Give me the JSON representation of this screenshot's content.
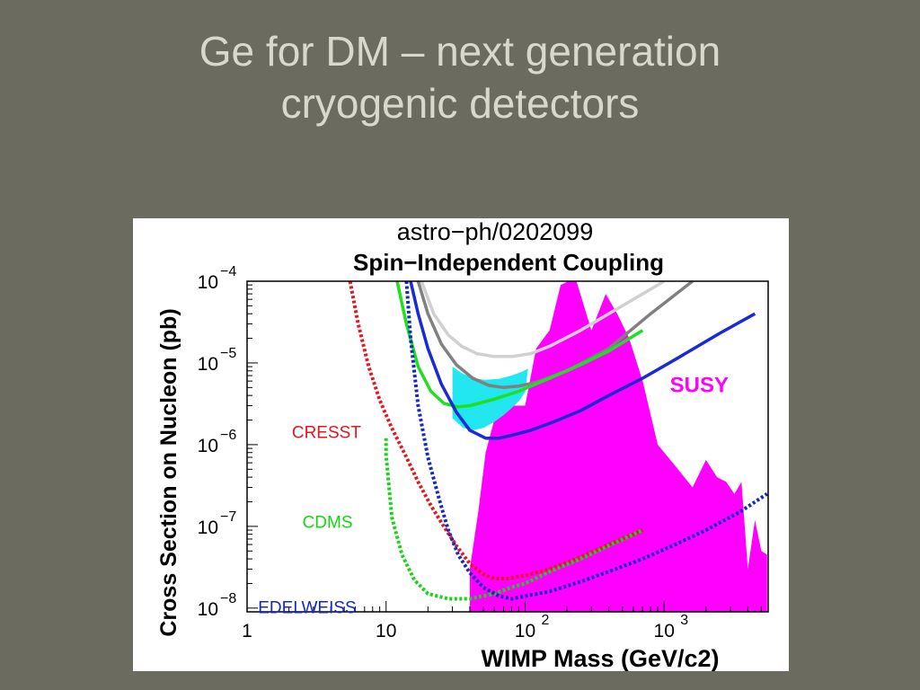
{
  "slide": {
    "title_line1": "Ge for DM – next generation",
    "title_line2": "cryogenic detectors"
  },
  "chart_data": {
    "type": "line",
    "title": "Spin−Independent Coupling",
    "subtitle": "astro−ph/0202099",
    "xlabel": "WIMP Mass (GeV/c2)",
    "ylabel": "Cross Section on Nucleon (pb)",
    "x_scale": "log",
    "y_scale": "log",
    "xlim": [
      1,
      5600
    ],
    "ylim": [
      9e-09,
      0.0001
    ],
    "grid": false,
    "legend": "none",
    "x_ticks": [
      {
        "value": 1,
        "label": "1",
        "sup": ""
      },
      {
        "value": 10,
        "label": "10",
        "sup": ""
      },
      {
        "value": 100,
        "label": "10",
        "sup": "2"
      },
      {
        "value": 1000,
        "label": "10",
        "sup": "3"
      }
    ],
    "y_ticks": [
      {
        "value": 0.0001,
        "label": "10",
        "sup": "−4"
      },
      {
        "value": 1e-05,
        "label": "10",
        "sup": "−5"
      },
      {
        "value": 1e-06,
        "label": "10",
        "sup": "−6"
      },
      {
        "value": 1e-07,
        "label": "10",
        "sup": "−7"
      },
      {
        "value": 1e-08,
        "label": "10",
        "sup": "−8"
      }
    ],
    "annotations": [
      {
        "text": "CRESST",
        "color": "#e8141e",
        "x": 2.1,
        "y": 1.2e-06
      },
      {
        "text": "CDMS",
        "color": "#13d613",
        "x": 2.5,
        "y": 9.6e-08
      },
      {
        "text": "EDELWEISS",
        "color": "#1428c8",
        "x": 1.2,
        "y": 8.7e-09
      },
      {
        "text": "SUSY",
        "color": "#ff00ff",
        "x": 1100,
        "y": 4.4e-06
      }
    ],
    "susy_region": {
      "name": "SUSY",
      "color": "#ff00ff",
      "x": [
        40,
        46,
        52,
        62,
        80,
        100,
        120,
        150,
        180,
        230,
        300,
        380,
        460,
        560,
        700,
        900,
        1200,
        1600,
        2000,
        2400,
        2800,
        3200,
        3600,
        4000,
        4500,
        5000,
        5500
      ],
      "y_top": [
        3e-08,
        1.5e-07,
        8e-07,
        2.5e-06,
        3e-06,
        3e-06,
        1.5e-05,
        2.5e-05,
        9e-05,
        0.00011,
        2.5e-05,
        7e-05,
        4e-05,
        2e-05,
        6e-06,
        1e-06,
        5.5e-07,
        3e-07,
        6.5e-07,
        4e-07,
        3.5e-07,
        2.5e-07,
        3.5e-07,
        3e-08,
        1.2e-07,
        5e-08,
        4.5e-08
      ]
    },
    "shaded_region": {
      "color": "#22e6f0",
      "x": [
        30,
        35,
        42,
        52,
        65,
        80,
        95,
        105,
        100,
        90,
        80,
        70,
        60,
        50,
        42,
        36,
        30
      ],
      "y": [
        9e-06,
        7.5e-06,
        6.5e-06,
        6.2e-06,
        6.4e-06,
        7e-06,
        7.8e-06,
        8.5e-06,
        4.4e-06,
        3.4e-06,
        2.8e-06,
        2.3e-06,
        1.9e-06,
        1.6e-06,
        1.5e-06,
        1.6e-06,
        2.1e-06
      ]
    },
    "series": [
      {
        "color": "#d0d0d0",
        "style": "solid",
        "x": [
          18,
          22,
          28,
          35,
          45,
          60,
          80,
          110,
          150,
          250,
          400,
          700,
          1000
        ],
        "y": [
          0.0001,
          4e-05,
          2.2e-05,
          1.6e-05,
          1.3e-05,
          1.2e-05,
          1.2e-05,
          1.3e-05,
          1.6e-05,
          2.5e-05,
          4e-05,
          7e-05,
          0.0001
        ]
      },
      {
        "color": "#808080",
        "style": "solid",
        "x": [
          17,
          20,
          25,
          32,
          42,
          55,
          70,
          90,
          120,
          200,
          400,
          800,
          1600
        ],
        "y": [
          0.0001,
          4e-05,
          1.7e-05,
          9.5e-06,
          6.5e-06,
          5.3e-06,
          5e-06,
          5.2e-06,
          5.8e-06,
          8e-06,
          1.5e-05,
          4e-05,
          0.0001
        ]
      },
      {
        "color": "#1fe01f",
        "style": "solid",
        "x": [
          12,
          14,
          17,
          21,
          26,
          33,
          40,
          60,
          90,
          150,
          250,
          400,
          700
        ],
        "y": [
          0.0001,
          3e-05,
          9e-06,
          4.5e-06,
          3.2e-06,
          2.9e-06,
          3e-06,
          3.6e-06,
          4.5e-06,
          6.5e-06,
          9.5e-06,
          1.4e-05,
          2.5e-05
        ]
      },
      {
        "color": "#1a2ad4",
        "style": "solid",
        "x": [
          15,
          17,
          20,
          25,
          32,
          40,
          52,
          65,
          80,
          110,
          160,
          250,
          400,
          700,
          1200,
          2500,
          4500
        ],
        "y": [
          0.0001,
          4e-05,
          1.5e-05,
          5.5e-06,
          2.5e-06,
          1.5e-06,
          1.2e-06,
          1.2e-06,
          1.3e-06,
          1.5e-06,
          1.9e-06,
          2.6e-06,
          4e-06,
          6.5e-06,
          1.1e-05,
          2.3e-05,
          4e-05
        ]
      },
      {
        "color": "#e8141e",
        "style": "dotted",
        "x": [
          5.5,
          6.3,
          7.5,
          9,
          11,
          14,
          17,
          21,
          26,
          32,
          40,
          50,
          60,
          75,
          100,
          150,
          250,
          400,
          700
        ],
        "y": [
          0.0001,
          3e-05,
          9e-06,
          3.5e-06,
          1.6e-06,
          7e-07,
          3.5e-07,
          1.8e-07,
          1e-07,
          5.8e-08,
          3.5e-08,
          2.6e-08,
          2.3e-08,
          2.3e-08,
          2.5e-08,
          3e-08,
          4.2e-08,
          6e-08,
          9e-08
        ]
      },
      {
        "color": "#13d613",
        "style": "dotted",
        "x": [
          10,
          10,
          11,
          13,
          16,
          20,
          28,
          40,
          60,
          80,
          100,
          150,
          250,
          400,
          700
        ],
        "y": [
          1.2e-06,
          7.5e-07,
          1.3e-07,
          4.5e-08,
          2.2e-08,
          1.5e-08,
          1.3e-08,
          1.3e-08,
          1.5e-08,
          1.8e-08,
          2e-08,
          2.8e-08,
          4e-08,
          5.8e-08,
          9e-08
        ]
      },
      {
        "color": "#1428c8",
        "style": "dotted",
        "x": [
          14,
          15,
          17,
          20,
          24,
          28,
          33,
          40,
          50,
          65,
          80,
          100,
          150,
          250,
          400,
          700,
          1200,
          2000,
          3500,
          5500
        ],
        "y": [
          0.0001,
          2e-05,
          3e-06,
          7e-07,
          2.2e-07,
          9e-08,
          4.5e-08,
          2.7e-08,
          1.8e-08,
          1.4e-08,
          1.3e-08,
          1.4e-08,
          1.6e-08,
          2.1e-08,
          2.8e-08,
          4e-08,
          6e-08,
          9e-08,
          1.5e-07,
          2.5e-07
        ]
      }
    ]
  }
}
